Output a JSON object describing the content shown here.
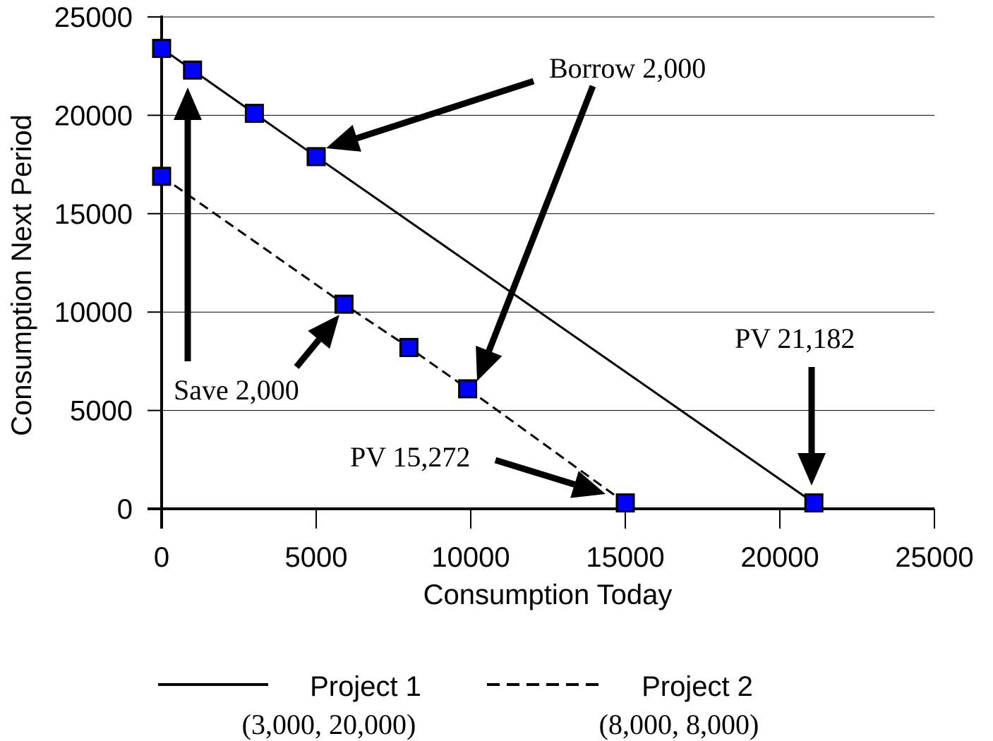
{
  "chart_data": {
    "type": "line",
    "xlabel": "Consumption Today",
    "ylabel": "Consumption Next Period",
    "xlim": [
      0,
      25000
    ],
    "ylim": [
      0,
      25000
    ],
    "xticks": [
      "0",
      "5000",
      "10000",
      "15000",
      "20000",
      "25000"
    ],
    "yticks": [
      "0",
      "5000",
      "10000",
      "15000",
      "20000",
      "25000"
    ],
    "grid": "horizontal",
    "legend_position": "bottom",
    "series": [
      {
        "name": "Project 1",
        "sublabel": "(3,000, 20,000)",
        "style": "solid",
        "x": [
          0,
          1000,
          3000,
          5000,
          21100
        ],
        "y": [
          23400,
          22300,
          20100,
          17900,
          300
        ]
      },
      {
        "name": "Project 2",
        "sublabel": "(8,000, 8,000)",
        "style": "dashed",
        "x": [
          0,
          5900,
          8000,
          9900,
          15000
        ],
        "y": [
          16900,
          10400,
          8200,
          6100,
          300
        ]
      }
    ],
    "annotations": [
      {
        "text": "Borrow 2,000"
      },
      {
        "text": "Save 2,000"
      },
      {
        "text": "PV 21,182"
      },
      {
        "text": "PV 15,272"
      }
    ],
    "marker_color": "#0000ff"
  }
}
